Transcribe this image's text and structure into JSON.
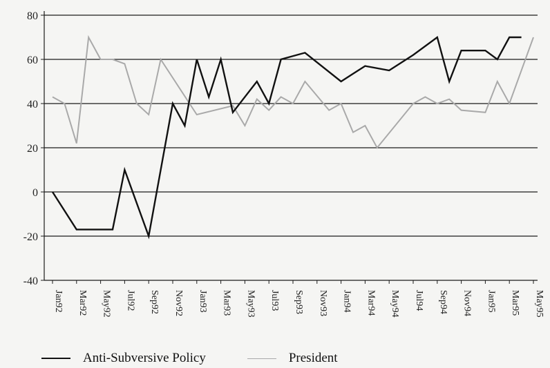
{
  "chart_data": {
    "type": "line",
    "title": "",
    "xlabel": "",
    "ylabel": "",
    "ylim": [
      -40,
      80
    ],
    "yticks": [
      80,
      60,
      40,
      20,
      0,
      -20,
      -40
    ],
    "grid": "horizontal",
    "legend_position": "bottom",
    "x_tick_labels": [
      "Jan92",
      "Mar92",
      "May92",
      "Jul92",
      "Sep92",
      "Nov92",
      "Jan93",
      "Mar93",
      "May93",
      "Jul93",
      "Sep93",
      "Nov93",
      "Jan94",
      "Mar94",
      "May94",
      "Jul94",
      "Sep94",
      "Nov94",
      "Jan95",
      "Mar95",
      "May95"
    ],
    "series": [
      {
        "name": "Anti-Subversive Policy",
        "color": "#111111",
        "points": [
          [
            "Jan92",
            0
          ],
          [
            "Mar92",
            -17
          ],
          [
            "May92",
            -17
          ],
          [
            "Jun92",
            -17
          ],
          [
            "Jul92",
            10
          ],
          [
            "Sep92",
            -20
          ],
          [
            "Nov92",
            40
          ],
          [
            "Dec92",
            30
          ],
          [
            "Jan93",
            60
          ],
          [
            "Feb93",
            43
          ],
          [
            "Mar93",
            60
          ],
          [
            "Apr93",
            36
          ],
          [
            "Jun93",
            50
          ],
          [
            "Jul93",
            40
          ],
          [
            "Aug93",
            60
          ],
          [
            "Oct93",
            63
          ],
          [
            "Jan94",
            50
          ],
          [
            "Mar94",
            57
          ],
          [
            "May94",
            55
          ],
          [
            "Jul94",
            62
          ],
          [
            "Sep94",
            70
          ],
          [
            "Oct94",
            50
          ],
          [
            "Nov94",
            64
          ],
          [
            "Jan95",
            64
          ],
          [
            "Feb95",
            60
          ],
          [
            "Mar95",
            70
          ],
          [
            "Apr95",
            70
          ]
        ]
      },
      {
        "name": "President",
        "color": "#a9a9a9",
        "points": [
          [
            "Jan92",
            43
          ],
          [
            "Feb92",
            40
          ],
          [
            "Mar92",
            22
          ],
          [
            "Apr92",
            70
          ],
          [
            "May92",
            60
          ],
          [
            "Jun92",
            60
          ],
          [
            "Jul92",
            58
          ],
          [
            "Aug92",
            40
          ],
          [
            "Sep92",
            35
          ],
          [
            "Oct92",
            60
          ],
          [
            "Jan93",
            35
          ],
          [
            "Apr93",
            39
          ],
          [
            "May93",
            30
          ],
          [
            "Jun93",
            42
          ],
          [
            "Jul93",
            37
          ],
          [
            "Aug93",
            43
          ],
          [
            "Sep93",
            40
          ],
          [
            "Oct93",
            50
          ],
          [
            "Dec93",
            37
          ],
          [
            "Jan94",
            40
          ],
          [
            "Feb94",
            27
          ],
          [
            "Mar94",
            30
          ],
          [
            "Apr94",
            20
          ],
          [
            "Jul94",
            40
          ],
          [
            "Aug94",
            43
          ],
          [
            "Sep94",
            40
          ],
          [
            "Oct94",
            42
          ],
          [
            "Nov94",
            37
          ],
          [
            "Jan95",
            36
          ],
          [
            "Feb95",
            50
          ],
          [
            "Mar95",
            40
          ],
          [
            "May95",
            70
          ]
        ]
      }
    ]
  },
  "legend": {
    "series1_label": "Anti-Subversive Policy",
    "series2_label": "President"
  }
}
